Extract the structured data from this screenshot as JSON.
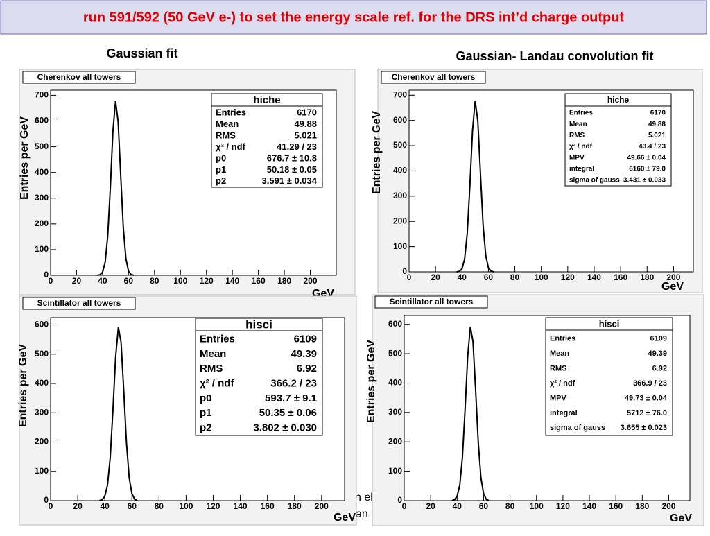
{
  "header": {
    "title": "run 591/592 (50 GeV e-) to set the energy scale ref. for the DRS int’d charge output",
    "left_caption": "Gaussian fit",
    "right_caption": "Gaussian- Landau convolution fit",
    "fragments": [
      "n el",
      "an"
    ]
  },
  "chart_data": [
    {
      "type": "line",
      "title": "Cherenkov all towers",
      "y_label": "Entries per GeV",
      "x_label": "GeV",
      "x": [
        36,
        38,
        40,
        42,
        44,
        46,
        48,
        50,
        52,
        54,
        56,
        58,
        60,
        62,
        64
      ],
      "values": [
        0,
        2,
        12,
        50,
        153,
        341,
        561,
        677,
        597,
        387,
        184,
        64,
        16,
        3,
        0
      ],
      "color": "#000000",
      "xlim": [
        0,
        220
      ],
      "ylim": [
        0,
        720
      ],
      "xticks": [
        0,
        20,
        40,
        60,
        80,
        100,
        120,
        140,
        160,
        180,
        200
      ],
      "yticks": [
        0,
        100,
        200,
        300,
        400,
        500,
        600,
        700
      ],
      "stats": {
        "title": "hiche",
        "rows": [
          [
            "Entries",
            "6170"
          ],
          [
            "Mean",
            "49.88"
          ],
          [
            "RMS",
            "5.021"
          ],
          [
            "χ² / ndf",
            "41.29 / 23"
          ],
          [
            "p0",
            "676.7 ± 10.8"
          ],
          [
            "p1",
            "50.18 ± 0.05"
          ],
          [
            "p2",
            "3.591 ± 0.034"
          ]
        ]
      }
    },
    {
      "type": "line",
      "title": "Cherenkov all towers",
      "y_label": "Entries per GeV",
      "x_label": "GeV",
      "x": [
        36,
        38,
        40,
        42,
        44,
        46,
        48,
        50,
        52,
        54,
        56,
        58,
        60,
        62,
        64
      ],
      "values": [
        0,
        2,
        12,
        50,
        153,
        341,
        561,
        677,
        597,
        387,
        184,
        64,
        16,
        3,
        0
      ],
      "color": "#000000",
      "xlim": [
        0,
        215
      ],
      "ylim": [
        0,
        720
      ],
      "xticks": [
        0,
        20,
        40,
        60,
        80,
        100,
        120,
        140,
        160,
        180,
        200
      ],
      "yticks": [
        0,
        100,
        200,
        300,
        400,
        500,
        600,
        700
      ],
      "stats": {
        "title": "hiche",
        "rows": [
          [
            "Entries",
            "6170"
          ],
          [
            "Mean",
            "49.88"
          ],
          [
            "RMS",
            "5.021"
          ],
          [
            "χ² / ndf",
            "43.4 / 23"
          ],
          [
            "MPV",
            "49.66 ± 0.04"
          ],
          [
            "integral",
            "6160 ± 79.0"
          ],
          [
            "sigma of gauss",
            "3.431 ± 0.033"
          ]
        ]
      }
    },
    {
      "type": "line",
      "title": "Scintillator all towers",
      "y_label": "Entries per GeV",
      "x_label": "GeV",
      "x": [
        36,
        38,
        40,
        42,
        44,
        46,
        48,
        50,
        52,
        54,
        56,
        58,
        60,
        62,
        64
      ],
      "values": [
        0,
        3,
        15,
        53,
        147,
        309,
        491,
        592,
        541,
        375,
        197,
        78,
        24,
        5,
        0
      ],
      "color": "#000000",
      "xlim": [
        0,
        217
      ],
      "ylim": [
        0,
        625
      ],
      "xticks": [
        0,
        20,
        40,
        60,
        80,
        100,
        120,
        140,
        160,
        180,
        200
      ],
      "yticks": [
        0,
        100,
        200,
        300,
        400,
        500,
        600
      ],
      "stats": {
        "title": "hisci",
        "rows": [
          [
            "Entries",
            "6109"
          ],
          [
            "Mean",
            "49.39"
          ],
          [
            "RMS",
            "6.92"
          ],
          [
            "χ² / ndf",
            "366.2 / 23"
          ],
          [
            "p0",
            "593.7 ± 9.1"
          ],
          [
            "p1",
            "50.35 ± 0.06"
          ],
          [
            "p2",
            "3.802 ± 0.030"
          ]
        ]
      }
    },
    {
      "type": "line",
      "title": "Scintillator all towers",
      "y_label": "Entries per GeV",
      "x_label": "GeV",
      "x": [
        36,
        38,
        40,
        42,
        44,
        46,
        48,
        50,
        52,
        54,
        56,
        58,
        60,
        62,
        64
      ],
      "values": [
        0,
        3,
        15,
        53,
        147,
        309,
        491,
        592,
        541,
        375,
        197,
        78,
        24,
        5,
        0
      ],
      "color": "#000000",
      "xlim": [
        0,
        216
      ],
      "ylim": [
        0,
        630
      ],
      "xticks": [
        0,
        20,
        40,
        60,
        80,
        100,
        120,
        140,
        160,
        180,
        200
      ],
      "yticks": [
        0,
        100,
        200,
        300,
        400,
        500,
        600
      ],
      "stats": {
        "title": "hisci",
        "rows": [
          [
            "Entries",
            "6109"
          ],
          [
            "Mean",
            "49.39"
          ],
          [
            "RMS",
            "6.92"
          ],
          [
            "χ² / ndf",
            "366.9 / 23"
          ],
          [
            "MPV",
            "49.73 ± 0.04"
          ],
          [
            "integral",
            "5712 ± 76.0"
          ],
          [
            "sigma of gauss",
            "3.655 ± 0.023"
          ]
        ]
      }
    }
  ]
}
